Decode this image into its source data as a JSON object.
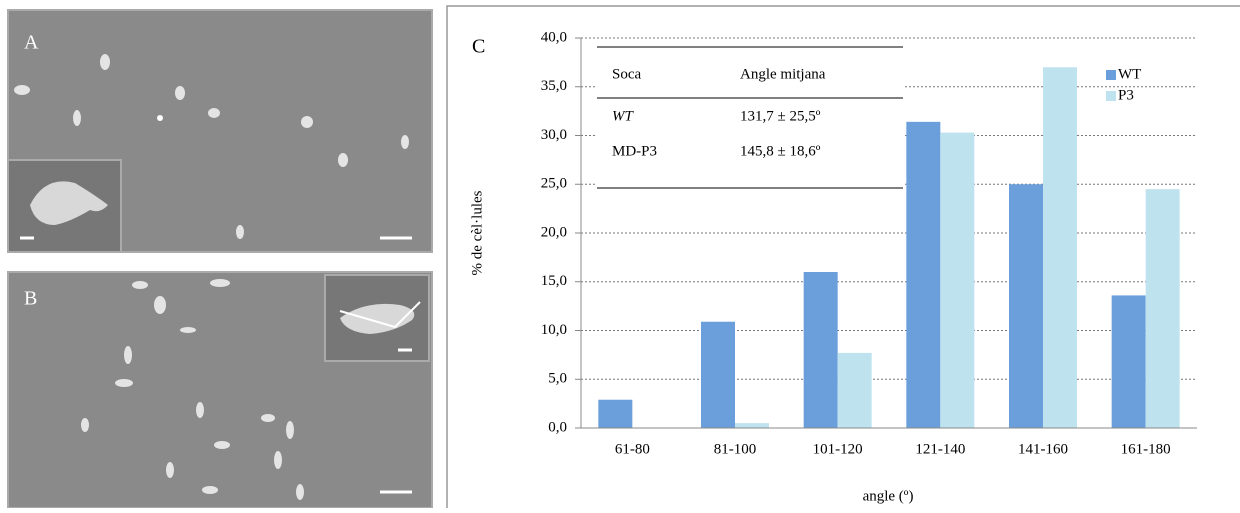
{
  "panels": [
    "A",
    "B",
    "C"
  ],
  "table": {
    "header": [
      "Soca",
      "Angle mitjana"
    ],
    "rows": [
      [
        "WT",
        "131,7 ± 25,5º"
      ],
      [
        "MD-P3",
        "145,8 ± 18,6º"
      ]
    ]
  },
  "chart_data": {
    "type": "bar",
    "y_label": "% de cèl·lules",
    "x_label": "angle (º)",
    "categories": [
      "61-80",
      "81-100",
      "101-120",
      "121-140",
      "141-160",
      "161-180"
    ],
    "series": [
      {
        "name": "WT",
        "color": "#6a9fdc",
        "values": [
          2.9,
          10.9,
          16.0,
          31.4,
          25.0,
          13.6
        ]
      },
      {
        "name": "P3",
        "color": "#bfe3ee",
        "values": [
          0,
          0.5,
          7.7,
          30.3,
          37.0,
          24.5
        ]
      }
    ],
    "ylim": [
      0,
      40
    ],
    "yticks": [
      {
        "value": 0,
        "label": "0,0"
      },
      {
        "value": 5,
        "label": "5,0"
      },
      {
        "value": 10,
        "label": "10,0"
      },
      {
        "value": 15,
        "label": "15,0"
      },
      {
        "value": 20,
        "label": "20,0"
      },
      {
        "value": 25,
        "label": "25,0"
      },
      {
        "value": 30,
        "label": "30,0"
      },
      {
        "value": 35,
        "label": "35,0"
      },
      {
        "value": 40,
        "label": "40,0"
      }
    ],
    "grid": true,
    "legend": "top-right"
  }
}
